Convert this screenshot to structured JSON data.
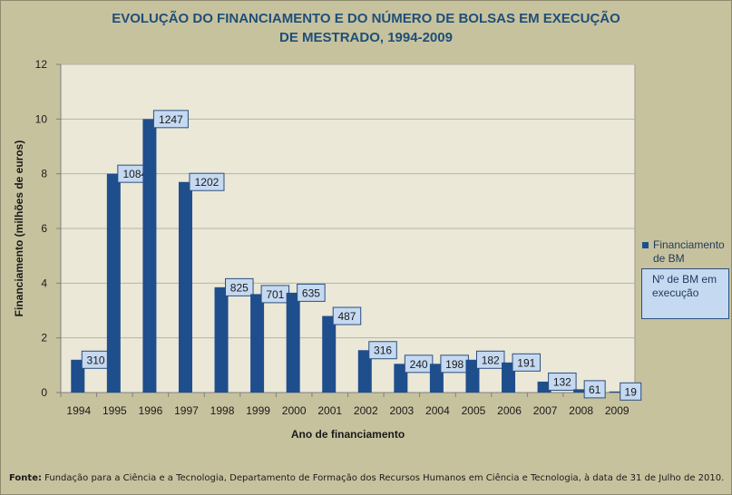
{
  "title": {
    "line1": "EVOLUÇÃO DO FINANCIAMENTO E DO NÚMERO DE BOLSAS EM EXECUÇÃO",
    "line2": "DE MESTRADO, 1994-2009"
  },
  "legend": {
    "series_label": "Financiamento de BM",
    "box_label": "Nº de BM em execução"
  },
  "footer": {
    "prefix": "Fonte:",
    "text": " Fundação para a Ciência e a Tecnologia, Departamento de Formação dos Recursos Humanos em Ciência e Tecnologia, à data de 31 de Julho de 2010."
  },
  "colors": {
    "background": "#c7c29e",
    "plot_area": "#ebe8d8",
    "bar": "#1f4e8c",
    "label_box": "#c5d9f1",
    "title": "#1f4e79"
  },
  "chart_data": {
    "type": "bar",
    "title": "EVOLUÇÃO DO FINANCIAMENTO E DO NÚMERO DE BOLSAS EM EXECUÇÃO DE MESTRADO, 1994-2009",
    "xlabel": "Ano de financiamento",
    "ylabel": "Financiamento (milhões de euros)",
    "ylim": [
      0,
      12
    ],
    "yticks": [
      0,
      2,
      4,
      6,
      8,
      10,
      12
    ],
    "grid": true,
    "legend_position": "right",
    "categories": [
      "1994",
      "1995",
      "1996",
      "1997",
      "1998",
      "1999",
      "2000",
      "2001",
      "2002",
      "2003",
      "2004",
      "2005",
      "2006",
      "2007",
      "2008",
      "2009"
    ],
    "series": [
      {
        "name": "Financiamento de BM",
        "values": [
          1.2,
          8.0,
          10.0,
          7.7,
          3.85,
          3.6,
          3.65,
          2.8,
          1.55,
          1.05,
          1.05,
          1.2,
          1.1,
          0.4,
          0.12,
          0.04
        ]
      },
      {
        "name": "Nº de BM em execução",
        "values": [
          310,
          1084,
          1247,
          1202,
          825,
          701,
          635,
          487,
          316,
          240,
          198,
          182,
          191,
          132,
          61,
          19
        ]
      }
    ]
  }
}
